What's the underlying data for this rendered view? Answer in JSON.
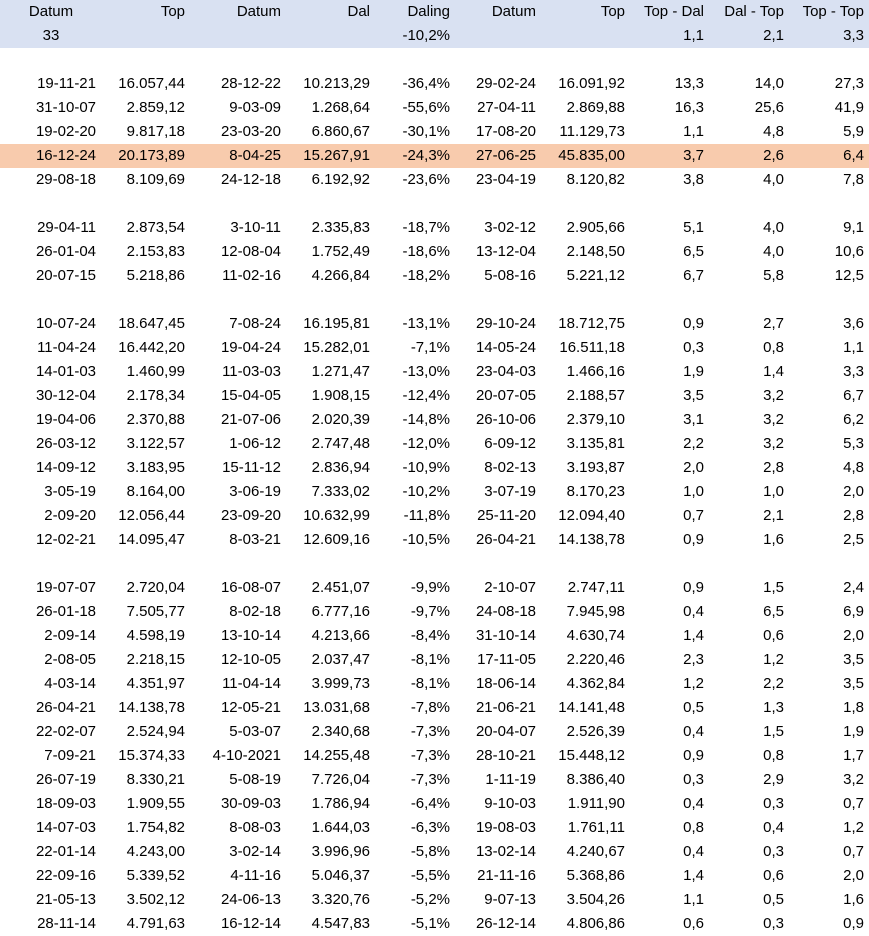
{
  "header": {
    "labels": [
      "Datum",
      "Top",
      "Datum",
      "Dal",
      "Daling",
      "Datum",
      "Top",
      "Top - Dal",
      "Dal - Top",
      "Top - Top"
    ],
    "summary": [
      "33",
      "",
      "",
      "",
      "-10,2%",
      "",
      "",
      "1,1",
      "2,1",
      "3,3"
    ]
  },
  "rows": [
    null,
    [
      "19-11-21",
      "16.057,44",
      "28-12-22",
      "10.213,29",
      "-36,4%",
      "29-02-24",
      "16.091,92",
      "13,3",
      "14,0",
      "27,3"
    ],
    [
      "31-10-07",
      "2.859,12",
      "9-03-09",
      "1.268,64",
      "-55,6%",
      "27-04-11",
      "2.869,88",
      "16,3",
      "25,6",
      "41,9"
    ],
    [
      "19-02-20",
      "9.817,18",
      "23-03-20",
      "6.860,67",
      "-30,1%",
      "17-08-20",
      "11.129,73",
      "1,1",
      "4,8",
      "5,9"
    ],
    [
      "16-12-24",
      "20.173,89",
      "8-04-25",
      "15.267,91",
      "-24,3%",
      "27-06-25",
      "45.835,00",
      "3,7",
      "2,6",
      "6,4"
    ],
    [
      "29-08-18",
      "8.109,69",
      "24-12-18",
      "6.192,92",
      "-23,6%",
      "23-04-19",
      "8.120,82",
      "3,8",
      "4,0",
      "7,8"
    ],
    null,
    [
      "29-04-11",
      "2.873,54",
      "3-10-11",
      "2.335,83",
      "-18,7%",
      "3-02-12",
      "2.905,66",
      "5,1",
      "4,0",
      "9,1"
    ],
    [
      "26-01-04",
      "2.153,83",
      "12-08-04",
      "1.752,49",
      "-18,6%",
      "13-12-04",
      "2.148,50",
      "6,5",
      "4,0",
      "10,6"
    ],
    [
      "20-07-15",
      "5.218,86",
      "11-02-16",
      "4.266,84",
      "-18,2%",
      "5-08-16",
      "5.221,12",
      "6,7",
      "5,8",
      "12,5"
    ],
    null,
    [
      "10-07-24",
      "18.647,45",
      "7-08-24",
      "16.195,81",
      "-13,1%",
      "29-10-24",
      "18.712,75",
      "0,9",
      "2,7",
      "3,6"
    ],
    [
      "11-04-24",
      "16.442,20",
      "19-04-24",
      "15.282,01",
      "-7,1%",
      "14-05-24",
      "16.511,18",
      "0,3",
      "0,8",
      "1,1"
    ],
    [
      "14-01-03",
      "1.460,99",
      "11-03-03",
      "1.271,47",
      "-13,0%",
      "23-04-03",
      "1.466,16",
      "1,9",
      "1,4",
      "3,3"
    ],
    [
      "30-12-04",
      "2.178,34",
      "15-04-05",
      "1.908,15",
      "-12,4%",
      "20-07-05",
      "2.188,57",
      "3,5",
      "3,2",
      "6,7"
    ],
    [
      "19-04-06",
      "2.370,88",
      "21-07-06",
      "2.020,39",
      "-14,8%",
      "26-10-06",
      "2.379,10",
      "3,1",
      "3,2",
      "6,2"
    ],
    [
      "26-03-12",
      "3.122,57",
      "1-06-12",
      "2.747,48",
      "-12,0%",
      "6-09-12",
      "3.135,81",
      "2,2",
      "3,2",
      "5,3"
    ],
    [
      "14-09-12",
      "3.183,95",
      "15-11-12",
      "2.836,94",
      "-10,9%",
      "8-02-13",
      "3.193,87",
      "2,0",
      "2,8",
      "4,8"
    ],
    [
      "3-05-19",
      "8.164,00",
      "3-06-19",
      "7.333,02",
      "-10,2%",
      "3-07-19",
      "8.170,23",
      "1,0",
      "1,0",
      "2,0"
    ],
    [
      "2-09-20",
      "12.056,44",
      "23-09-20",
      "10.632,99",
      "-11,8%",
      "25-11-20",
      "12.094,40",
      "0,7",
      "2,1",
      "2,8"
    ],
    [
      "12-02-21",
      "14.095,47",
      "8-03-21",
      "12.609,16",
      "-10,5%",
      "26-04-21",
      "14.138,78",
      "0,9",
      "1,6",
      "2,5"
    ],
    null,
    [
      "19-07-07",
      "2.720,04",
      "16-08-07",
      "2.451,07",
      "-9,9%",
      "2-10-07",
      "2.747,11",
      "0,9",
      "1,5",
      "2,4"
    ],
    [
      "26-01-18",
      "7.505,77",
      "8-02-18",
      "6.777,16",
      "-9,7%",
      "24-08-18",
      "7.945,98",
      "0,4",
      "6,5",
      "6,9"
    ],
    [
      "2-09-14",
      "4.598,19",
      "13-10-14",
      "4.213,66",
      "-8,4%",
      "31-10-14",
      "4.630,74",
      "1,4",
      "0,6",
      "2,0"
    ],
    [
      "2-08-05",
      "2.218,15",
      "12-10-05",
      "2.037,47",
      "-8,1%",
      "17-11-05",
      "2.220,46",
      "2,3",
      "1,2",
      "3,5"
    ],
    [
      "4-03-14",
      "4.351,97",
      "11-04-14",
      "3.999,73",
      "-8,1%",
      "18-06-14",
      "4.362,84",
      "1,2",
      "2,2",
      "3,5"
    ],
    [
      "26-04-21",
      "14.138,78",
      "12-05-21",
      "13.031,68",
      "-7,8%",
      "21-06-21",
      "14.141,48",
      "0,5",
      "1,3",
      "1,8"
    ],
    [
      "22-02-07",
      "2.524,94",
      "5-03-07",
      "2.340,68",
      "-7,3%",
      "20-04-07",
      "2.526,39",
      "0,4",
      "1,5",
      "1,9"
    ],
    [
      "7-09-21",
      "15.374,33",
      "4-10-2021",
      "14.255,48",
      "-7,3%",
      "28-10-21",
      "15.448,12",
      "0,9",
      "0,8",
      "1,7"
    ],
    [
      "26-07-19",
      "8.330,21",
      "5-08-19",
      "7.726,04",
      "-7,3%",
      "1-11-19",
      "8.386,40",
      "0,3",
      "2,9",
      "3,2"
    ],
    [
      "18-09-03",
      "1.909,55",
      "30-09-03",
      "1.786,94",
      "-6,4%",
      "9-10-03",
      "1.911,90",
      "0,4",
      "0,3",
      "0,7"
    ],
    [
      "14-07-03",
      "1.754,82",
      "8-08-03",
      "1.644,03",
      "-6,3%",
      "19-08-03",
      "1.761,11",
      "0,8",
      "0,4",
      "1,2"
    ],
    [
      "22-01-14",
      "4.243,00",
      "3-02-14",
      "3.996,96",
      "-5,8%",
      "13-02-14",
      "4.240,67",
      "0,4",
      "0,3",
      "0,7"
    ],
    [
      "22-09-16",
      "5.339,52",
      "4-11-16",
      "5.046,37",
      "-5,5%",
      "21-11-16",
      "5.368,86",
      "1,4",
      "0,6",
      "2,0"
    ],
    [
      "21-05-13",
      "3.502,12",
      "24-06-13",
      "3.320,76",
      "-5,2%",
      "9-07-13",
      "3.504,26",
      "1,1",
      "0,5",
      "1,6"
    ],
    [
      "28-11-14",
      "4.791,63",
      "16-12-14",
      "4.547,83",
      "-5,1%",
      "26-12-14",
      "4.806,86",
      "0,6",
      "0,3",
      "0,9"
    ]
  ],
  "highlight_row_index": 4,
  "colors": {
    "header_bg": "#d9e1f2",
    "highlight_bg": "#f8cbad"
  }
}
